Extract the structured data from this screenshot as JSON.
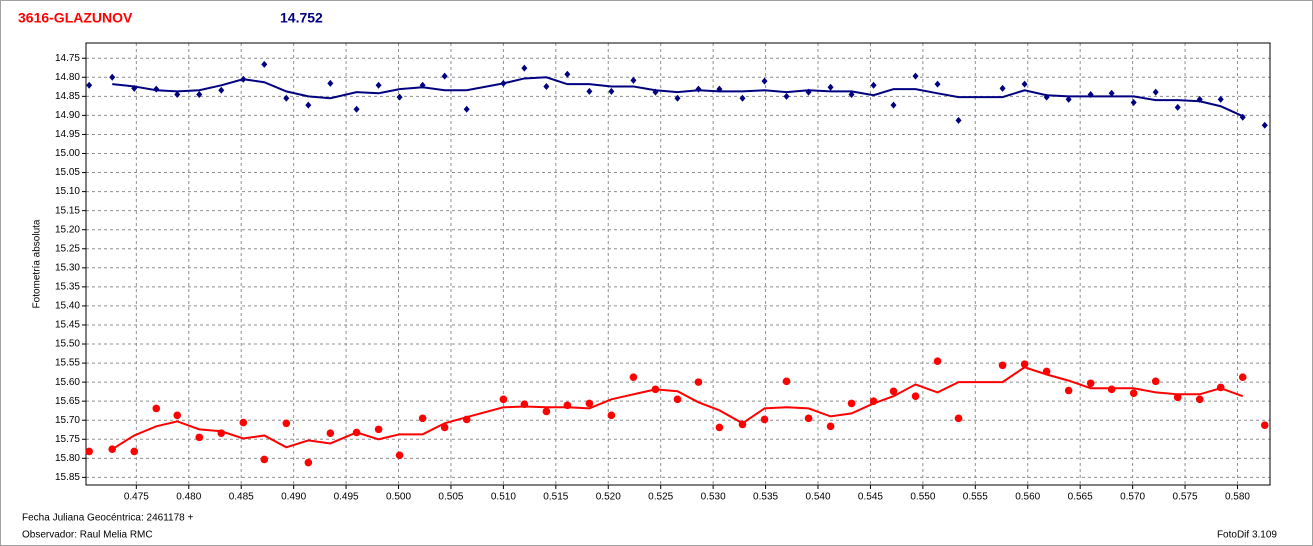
{
  "chart_data": {
    "type": "scatter",
    "title": "3616-GLAZUNOV",
    "subtitle": "14.752",
    "y_label": "Fotometría absoluta",
    "x_label": "Fecha Juliana Geocéntrica: 2461178 +",
    "annotations": [
      "Observador: Raul Melia RMC",
      "FotoDif 3.109"
    ],
    "x": [
      0.4705,
      0.4727,
      0.4748,
      0.4769,
      0.4789,
      0.481,
      0.4831,
      0.4852,
      0.4872,
      0.4893,
      0.4914,
      0.4935,
      0.496,
      0.4981,
      0.5001,
      0.5023,
      0.5044,
      0.5065,
      0.51,
      0.512,
      0.5141,
      0.5161,
      0.5182,
      0.5203,
      0.5224,
      0.5245,
      0.5266,
      0.5286,
      0.5306,
      0.5328,
      0.5349,
      0.537,
      0.5391,
      0.5412,
      0.5432,
      0.5453,
      0.5472,
      0.5493,
      0.5514,
      0.5534,
      0.5576,
      0.5597,
      0.5618,
      0.5639,
      0.566,
      0.568,
      0.5701,
      0.5722,
      0.5743,
      0.5764,
      0.5784,
      0.5805,
      0.5826
    ],
    "series": [
      {
        "color": "#000080",
        "style": "markers",
        "marker": "diamond",
        "values": [
          14.821,
          14.8,
          14.829,
          14.831,
          14.845,
          14.845,
          14.834,
          14.805,
          14.766,
          14.855,
          14.873,
          14.816,
          14.884,
          14.821,
          14.852,
          14.821,
          14.797,
          14.884,
          14.816,
          14.776,
          14.824,
          14.792,
          14.837,
          14.837,
          14.808,
          14.839,
          14.855,
          14.831,
          14.831,
          14.855,
          14.81,
          14.85,
          14.839,
          14.826,
          14.845,
          14.821,
          14.873,
          14.797,
          14.818,
          14.913,
          14.829,
          14.818,
          14.852,
          14.858,
          14.845,
          14.842,
          14.866,
          14.839,
          14.879,
          14.858,
          14.858,
          14.905,
          14.926
        ]
      },
      {
        "color": "#ff0000",
        "style": "markers",
        "marker": "circle",
        "values": [
          15.782,
          15.776,
          15.782,
          15.669,
          15.687,
          15.745,
          15.734,
          15.706,
          15.803,
          15.708,
          15.811,
          15.734,
          15.732,
          15.724,
          15.792,
          15.695,
          15.719,
          15.698,
          15.645,
          15.658,
          15.677,
          15.661,
          15.656,
          15.687,
          15.587,
          15.619,
          15.645,
          15.6,
          15.719,
          15.711,
          15.698,
          15.598,
          15.695,
          15.716,
          15.656,
          15.65,
          15.624,
          15.637,
          15.545,
          15.695,
          15.556,
          15.553,
          15.572,
          15.622,
          15.603,
          15.619,
          15.629,
          15.598,
          15.64,
          15.645,
          15.614,
          15.587,
          15.713
        ]
      },
      {
        "color": "#000080",
        "style": "line",
        "values": [
          null,
          14.818,
          14.824,
          14.834,
          14.837,
          14.834,
          14.821,
          14.805,
          14.813,
          14.837,
          14.85,
          14.855,
          14.839,
          14.842,
          14.831,
          14.826,
          14.834,
          14.834,
          14.816,
          14.803,
          14.8,
          14.818,
          14.818,
          14.824,
          14.824,
          14.834,
          14.839,
          14.834,
          14.837,
          14.837,
          14.834,
          14.839,
          14.834,
          14.837,
          14.837,
          14.847,
          14.831,
          14.831,
          14.842,
          14.852,
          14.852,
          14.834,
          14.847,
          14.85,
          14.85,
          14.85,
          14.85,
          14.86,
          14.86,
          14.863,
          14.876,
          14.902,
          null
        ]
      },
      {
        "color": "#ff0000",
        "style": "line",
        "values": [
          null,
          15.776,
          15.74,
          15.716,
          15.703,
          15.724,
          15.729,
          15.748,
          15.74,
          15.771,
          15.753,
          15.761,
          15.732,
          15.75,
          15.737,
          15.737,
          15.708,
          15.692,
          15.666,
          15.664,
          15.666,
          15.666,
          15.669,
          15.645,
          15.632,
          15.619,
          15.624,
          15.653,
          15.674,
          15.708,
          15.669,
          15.666,
          15.669,
          15.69,
          15.682,
          15.656,
          15.637,
          15.606,
          15.627,
          15.6,
          15.6,
          15.561,
          15.58,
          15.596,
          15.616,
          15.616,
          15.616,
          15.627,
          15.632,
          15.632,
          15.616,
          15.637,
          null
        ]
      }
    ],
    "xlim": [
      0.4702,
      0.5831
    ],
    "ylim": [
      14.71,
      15.87
    ],
    "y_reversed": true,
    "grid": true,
    "xticks": [
      0.475,
      {
        "value": 0.48,
        "label": "0.480"
      },
      0.485,
      {
        "value": 0.49,
        "label": "0.490"
      },
      0.495,
      {
        "value": 0.5,
        "label": "0.500"
      },
      0.505,
      {
        "value": 0.51,
        "label": "0.510"
      },
      0.515,
      {
        "value": 0.52,
        "label": "0.520"
      },
      0.525,
      {
        "value": 0.53,
        "label": "0.530"
      },
      0.535,
      {
        "value": 0.54,
        "label": "0.540"
      },
      0.545,
      {
        "value": 0.55,
        "label": "0.550"
      },
      0.555,
      {
        "value": 0.56,
        "label": "0.560"
      },
      0.565,
      {
        "value": 0.57,
        "label": "0.570"
      },
      0.575,
      {
        "value": 0.58,
        "label": "0.580"
      }
    ],
    "yticks": [
      14.75,
      {
        "value": 14.8,
        "label": "14.80"
      },
      14.85,
      {
        "value": 14.9,
        "label": "14.90"
      },
      14.95,
      {
        "value": 15,
        "label": "15.00"
      },
      15.05,
      {
        "value": 15.1,
        "label": "15.10"
      },
      15.15,
      {
        "value": 15.2,
        "label": "15.20"
      },
      15.25,
      {
        "value": 15.3,
        "label": "15.30"
      },
      15.35,
      {
        "value": 15.4,
        "label": "15.40"
      },
      15.45,
      {
        "value": 15.5,
        "label": "15.50"
      },
      15.55,
      {
        "value": 15.6,
        "label": "15.60"
      },
      15.65,
      {
        "value": 15.7,
        "label": "15.70"
      },
      15.75,
      {
        "value": 15.8,
        "label": "15.80"
      },
      15.85
    ]
  }
}
